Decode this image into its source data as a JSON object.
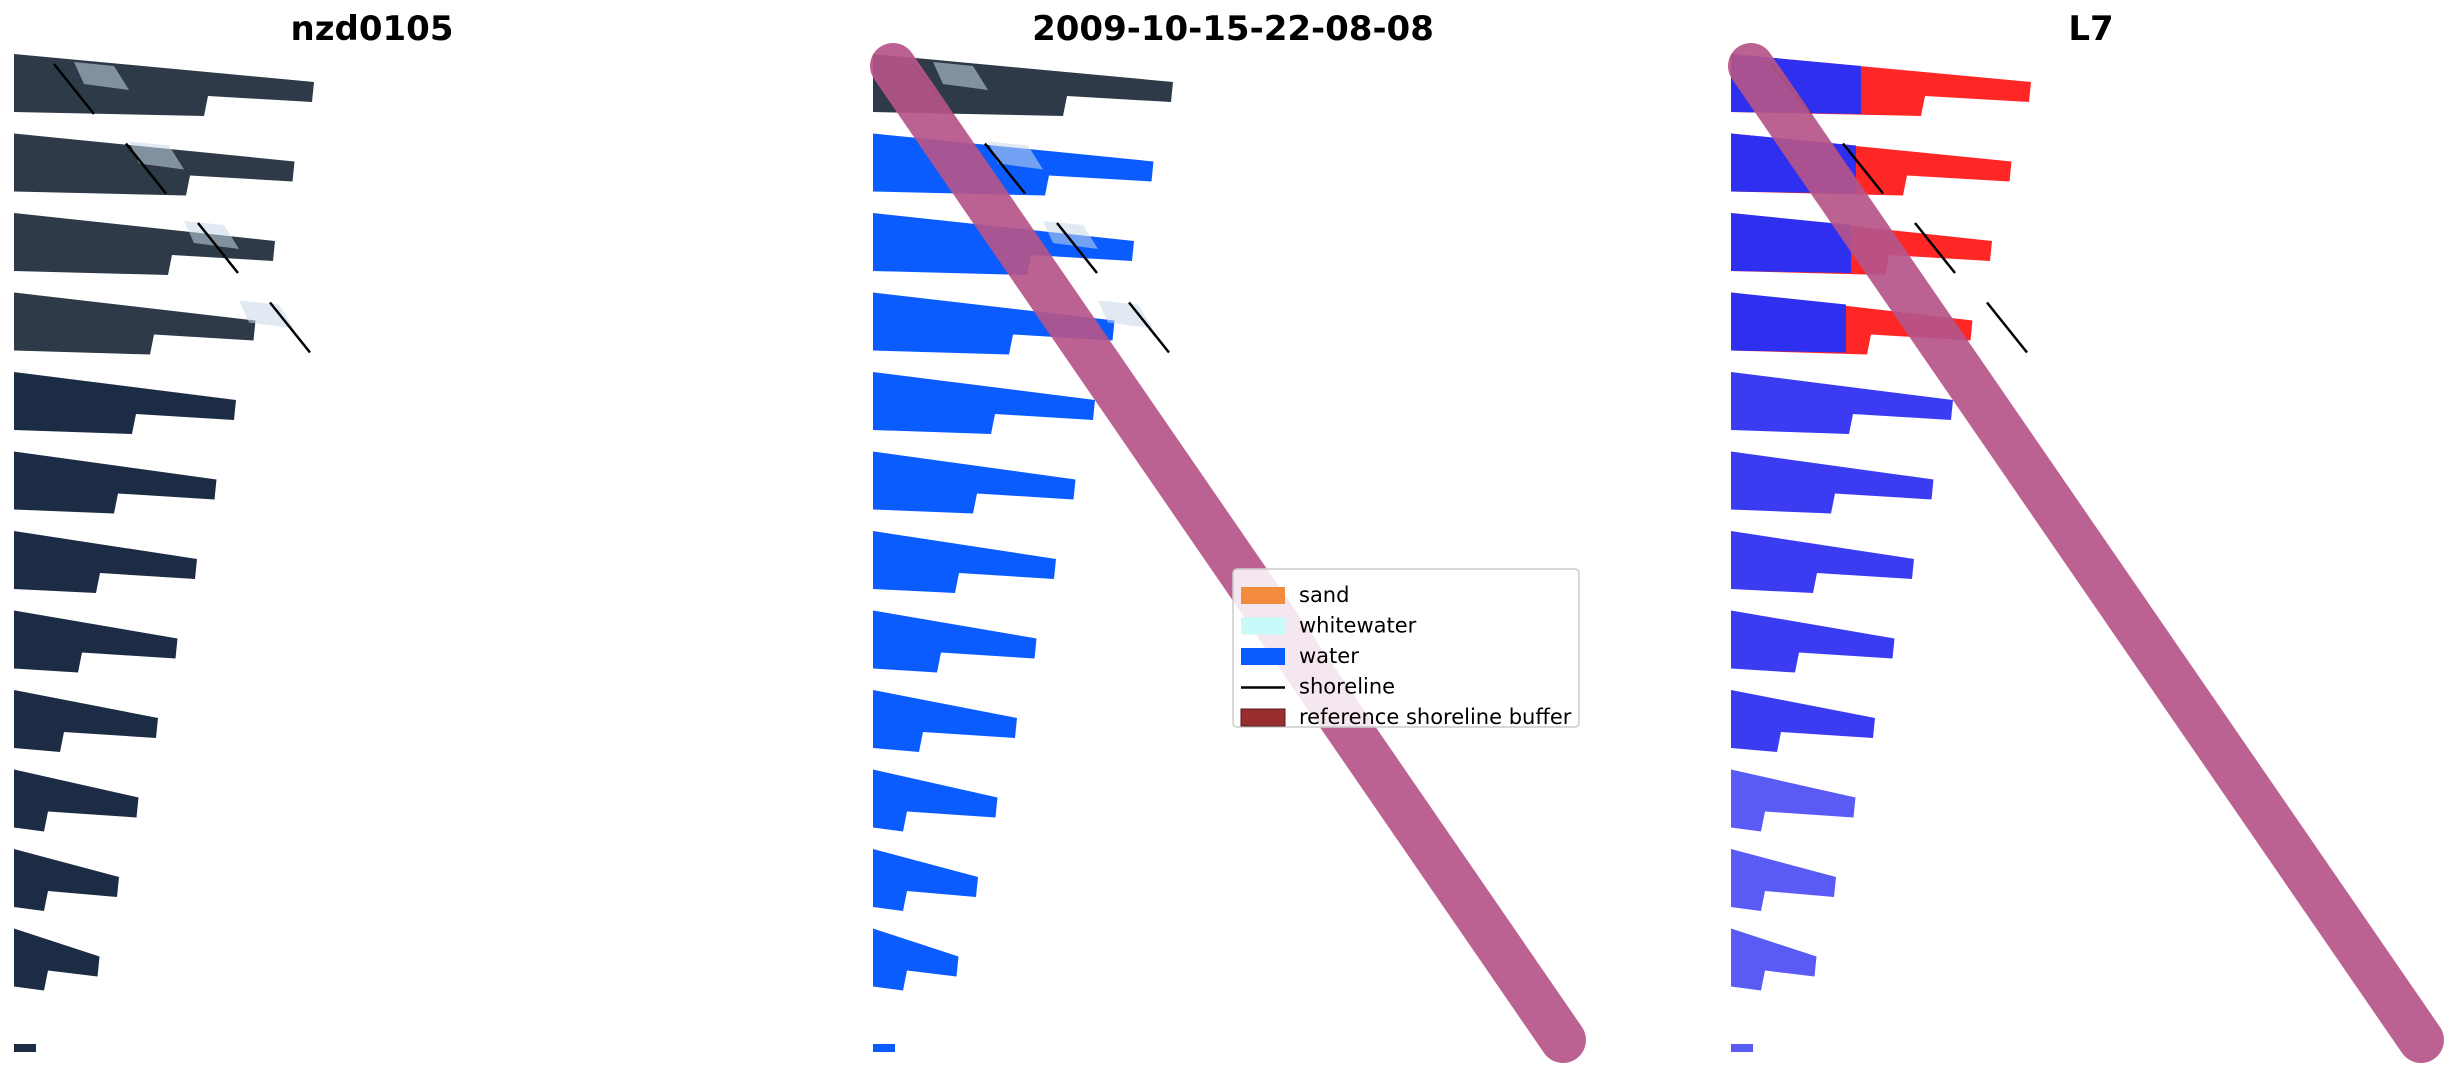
{
  "figure": {
    "panels": [
      {
        "title": "nzd0105",
        "style": "rgb",
        "water_fill": "#1c2c44",
        "top_fill": "#2e3a47",
        "sky_fill": "#c8d8e8"
      },
      {
        "title": "2009-10-15-22-08-08",
        "style": "classified",
        "water_fill": "#0a5cff",
        "top_fill": "#2e3a47",
        "sky_fill": "#c8d8e8"
      },
      {
        "title": "L7",
        "style": "index",
        "water_fill": "#3b3bf2",
        "top_fill": "#ff2626",
        "sky_fill": "#ff5a5a"
      }
    ],
    "buffer_color": "#b5558a",
    "shoreline_color": "#000000"
  },
  "legend": {
    "items": [
      {
        "label": "sand",
        "kind": "patch",
        "color": "#f28c3c"
      },
      {
        "label": "whitewater",
        "kind": "patch",
        "color": "#c8fafa"
      },
      {
        "label": "water",
        "kind": "patch",
        "color": "#0a5cff"
      },
      {
        "label": "shoreline",
        "kind": "line",
        "color": "#000000"
      },
      {
        "label": "reference shoreline buffer",
        "kind": "patch",
        "color": "#992e2e"
      }
    ]
  }
}
